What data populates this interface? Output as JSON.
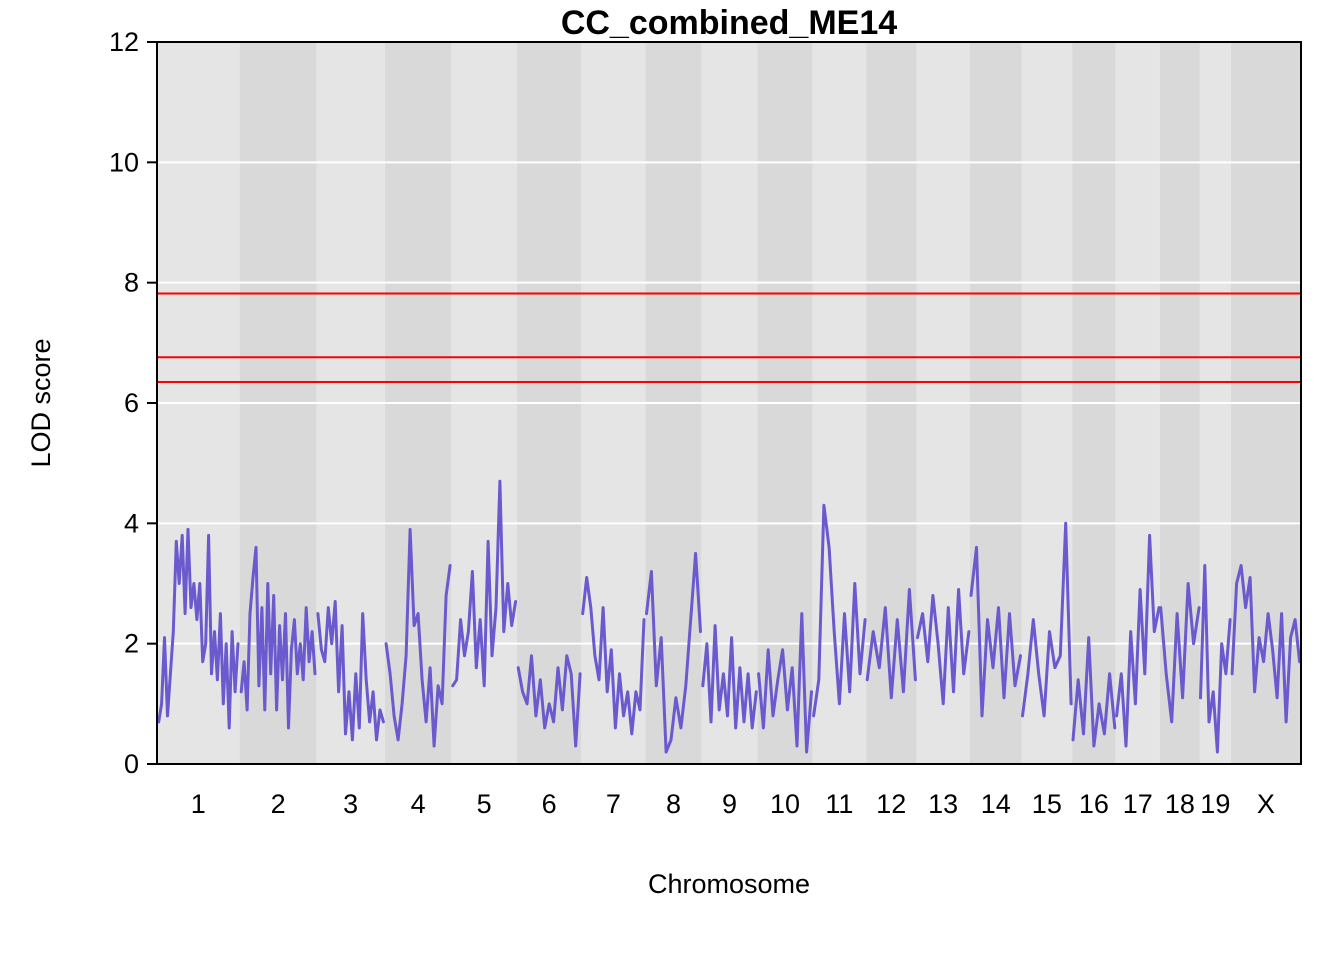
{
  "chart_data": {
    "type": "line",
    "title": "CC_combined_ME14",
    "xlabel": "Chromosome",
    "ylabel": "LOD score",
    "ylim": [
      0,
      12
    ],
    "yticks": [
      "0",
      "2",
      "4",
      "6",
      "8",
      "10",
      "12"
    ],
    "grid": true,
    "line_color": "#6a5acd",
    "threshold_color": "#ff0000",
    "band_colors": [
      "#e5e5e5",
      "#d9d9d9"
    ],
    "thresholds": [
      7.82,
      6.76,
      6.35
    ],
    "chromosomes": [
      {
        "label": "1",
        "start": 0.0,
        "end": 6.81,
        "lod": [
          0.7,
          1.0,
          2.1,
          0.8,
          1.5,
          2.2,
          3.7,
          3.0,
          3.8,
          2.5,
          3.9,
          2.6,
          3.0,
          2.4,
          3.0,
          1.7,
          2.0,
          3.8,
          1.5,
          2.2,
          1.4,
          2.5,
          1.0,
          2.0,
          0.6,
          2.2,
          1.2,
          2.0
        ]
      },
      {
        "label": "2",
        "start": 6.81,
        "end": 13.15,
        "lod": [
          1.2,
          1.7,
          0.9,
          2.5,
          3.1,
          3.6,
          1.3,
          2.6,
          0.9,
          3.0,
          1.5,
          2.8,
          0.9,
          2.3,
          1.4,
          2.5,
          0.6,
          1.9,
          2.4,
          1.5,
          2.0,
          1.4,
          2.6,
          1.7,
          2.2,
          1.5
        ]
      },
      {
        "label": "3",
        "start": 13.15,
        "end": 18.77,
        "lod": [
          2.5,
          1.9,
          1.7,
          2.6,
          2.0,
          2.7,
          1.2,
          2.3,
          0.5,
          1.2,
          0.4,
          1.5,
          0.6,
          2.5,
          1.4,
          0.7,
          1.2,
          0.4,
          0.9,
          0.7
        ]
      },
      {
        "label": "4",
        "start": 18.77,
        "end": 24.26,
        "lod": [
          2.0,
          1.5,
          0.8,
          0.4,
          1.0,
          1.8,
          3.9,
          2.3,
          2.5,
          1.4,
          0.7,
          1.6,
          0.3,
          1.3,
          1.0,
          2.8,
          3.3
        ]
      },
      {
        "label": "5",
        "start": 24.26,
        "end": 29.66,
        "lod": [
          1.3,
          1.4,
          2.4,
          1.8,
          2.2,
          3.2,
          1.6,
          2.4,
          1.3,
          3.7,
          1.8,
          2.6,
          4.7,
          2.2,
          3.0,
          2.3,
          2.7
        ]
      },
      {
        "label": "6",
        "start": 29.66,
        "end": 34.97,
        "lod": [
          1.6,
          1.2,
          1.0,
          1.8,
          0.8,
          1.4,
          0.6,
          1.0,
          0.7,
          1.6,
          0.9,
          1.8,
          1.5,
          0.3,
          1.5
        ]
      },
      {
        "label": "7",
        "start": 34.97,
        "end": 40.24,
        "lod": [
          2.5,
          3.1,
          2.6,
          1.8,
          1.4,
          2.6,
          1.2,
          1.9,
          0.6,
          1.5,
          0.8,
          1.2,
          0.5,
          1.2,
          0.9,
          2.4
        ]
      },
      {
        "label": "8",
        "start": 40.24,
        "end": 44.88,
        "lod": [
          2.5,
          3.2,
          1.3,
          2.1,
          0.2,
          0.4,
          1.1,
          0.6,
          1.3,
          2.4,
          3.5,
          2.2
        ]
      },
      {
        "label": "9",
        "start": 44.88,
        "end": 49.48,
        "lod": [
          1.3,
          2.0,
          0.7,
          2.3,
          0.9,
          1.5,
          0.8,
          2.1,
          0.6,
          1.6,
          0.7,
          1.5,
          0.6,
          1.2
        ]
      },
      {
        "label": "10",
        "start": 49.48,
        "end": 54.02,
        "lod": [
          1.5,
          0.6,
          1.9,
          0.8,
          1.4,
          1.9,
          0.9,
          1.6,
          0.3,
          2.5,
          0.2,
          1.2
        ]
      },
      {
        "label": "11",
        "start": 54.02,
        "end": 58.44,
        "lod": [
          0.8,
          1.4,
          4.3,
          3.6,
          2.2,
          1.0,
          2.5,
          1.2,
          3.0,
          1.5,
          2.4
        ]
      },
      {
        "label": "12",
        "start": 58.44,
        "end": 62.58,
        "lod": [
          1.4,
          2.2,
          1.6,
          2.6,
          1.1,
          2.4,
          1.2,
          2.9,
          1.4
        ]
      },
      {
        "label": "13",
        "start": 62.58,
        "end": 66.99,
        "lod": [
          2.1,
          2.5,
          1.7,
          2.8,
          2.0,
          1.0,
          2.6,
          1.2,
          2.9,
          1.5,
          2.2
        ]
      },
      {
        "label": "14",
        "start": 66.99,
        "end": 71.24,
        "lod": [
          2.8,
          3.6,
          0.8,
          2.4,
          1.6,
          2.6,
          1.1,
          2.5,
          1.3,
          1.8
        ]
      },
      {
        "label": "15",
        "start": 71.24,
        "end": 75.41,
        "lod": [
          0.8,
          1.5,
          2.4,
          1.5,
          0.8,
          2.2,
          1.6,
          1.8,
          4.0,
          1.0
        ]
      },
      {
        "label": "16",
        "start": 75.41,
        "end": 79.0,
        "lod": [
          0.4,
          1.4,
          0.5,
          2.1,
          0.3,
          1.0,
          0.5,
          1.5,
          0.6
        ]
      },
      {
        "label": "17",
        "start": 79.0,
        "end": 82.64,
        "lod": [
          0.8,
          1.5,
          0.3,
          2.2,
          1.0,
          2.9,
          1.5,
          3.8,
          2.2,
          2.6
        ]
      },
      {
        "label": "18",
        "start": 82.64,
        "end": 85.94,
        "lod": [
          2.6,
          1.5,
          0.7,
          2.5,
          1.1,
          3.0,
          2.0,
          2.6
        ]
      },
      {
        "label": "19",
        "start": 85.94,
        "end": 88.48,
        "lod": [
          1.1,
          3.3,
          0.7,
          1.2,
          0.2,
          2.0,
          1.5,
          2.4
        ]
      },
      {
        "label": "X",
        "start": 88.48,
        "end": 94.27,
        "lod": [
          1.5,
          3.0,
          3.3,
          2.6,
          3.1,
          1.2,
          2.1,
          1.7,
          2.5,
          1.9,
          1.1,
          2.5,
          0.7,
          2.1,
          2.4,
          1.7
        ]
      }
    ]
  }
}
